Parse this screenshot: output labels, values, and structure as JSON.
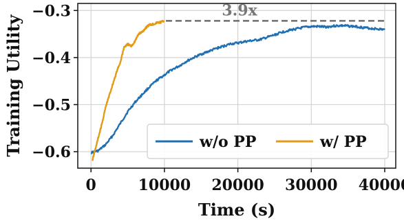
{
  "chart_data": {
    "type": "line",
    "xlabel": "Time (s)",
    "ylabel": "Training Utility",
    "xlim": [
      -1800,
      41500
    ],
    "ylim": [
      -0.635,
      -0.285
    ],
    "xticks": [
      0,
      10000,
      20000,
      30000,
      40000
    ],
    "xtick_labels": [
      "0",
      "10000",
      "20000",
      "30000",
      "40000"
    ],
    "yticks": [
      -0.3,
      -0.4,
      -0.5,
      -0.6
    ],
    "ytick_labels": [
      "−0.3",
      "−0.4",
      "−0.5",
      "−0.6"
    ],
    "grid": true,
    "legend_position": "bottom-right",
    "series": [
      {
        "name": "w/o PP",
        "color": "#1f6fb2",
        "x": [
          0,
          1000,
          2000,
          3000,
          4000,
          5000,
          6000,
          7000,
          8000,
          9000,
          10000,
          11000,
          12000,
          13000,
          14000,
          15000,
          16000,
          17000,
          18000,
          19000,
          20000,
          21000,
          22000,
          23000,
          24000,
          25000,
          26000,
          27000,
          28000,
          29000,
          30000,
          31000,
          32000,
          33000,
          34000,
          35000,
          36000,
          37000,
          38000,
          39000,
          40000
        ],
        "y": [
          -0.602,
          -0.598,
          -0.585,
          -0.565,
          -0.54,
          -0.515,
          -0.495,
          -0.478,
          -0.462,
          -0.448,
          -0.437,
          -0.426,
          -0.418,
          -0.408,
          -0.4,
          -0.393,
          -0.387,
          -0.381,
          -0.376,
          -0.371,
          -0.369,
          -0.366,
          -0.364,
          -0.362,
          -0.357,
          -0.352,
          -0.346,
          -0.342,
          -0.339,
          -0.336,
          -0.334,
          -0.334,
          -0.335,
          -0.333,
          -0.332,
          -0.333,
          -0.334,
          -0.336,
          -0.338,
          -0.339,
          -0.341
        ]
      },
      {
        "name": "w/ PP",
        "color": "#e39b17",
        "x": [
          200,
          500,
          1000,
          1500,
          2000,
          2500,
          3000,
          3500,
          4000,
          4500,
          5000,
          5500,
          6000,
          6500,
          7000,
          7500,
          8000,
          8500,
          9000,
          9500,
          10000
        ],
        "y": [
          -0.618,
          -0.6,
          -0.57,
          -0.54,
          -0.505,
          -0.48,
          -0.455,
          -0.43,
          -0.41,
          -0.378,
          -0.372,
          -0.376,
          -0.365,
          -0.35,
          -0.345,
          -0.336,
          -0.33,
          -0.329,
          -0.326,
          -0.325,
          -0.322
        ]
      }
    ],
    "annotation": {
      "text": "3.9x",
      "y": -0.322,
      "x_start": 10200,
      "x_end": 40000,
      "style": "dashed",
      "color": "#6e6e6e"
    }
  }
}
